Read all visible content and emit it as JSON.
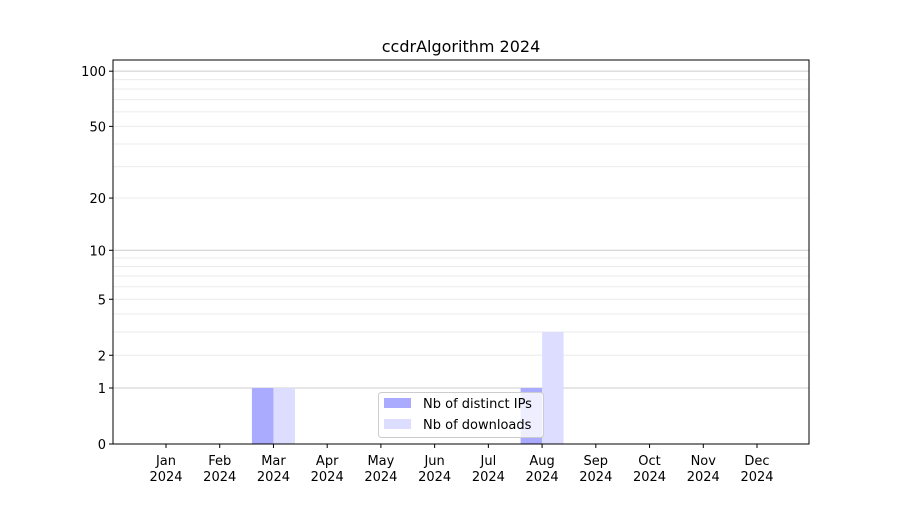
{
  "chart_data": {
    "type": "bar",
    "title": "ccdrAlgorithm 2024",
    "xlabel": "",
    "ylabel": "",
    "y_scale": "log(1+y)",
    "ylim": [
      0,
      115
    ],
    "yticks": [
      0,
      1,
      2,
      5,
      10,
      20,
      50,
      100
    ],
    "ytick_labels": [
      "0",
      "1",
      "2",
      "5",
      "10",
      "20",
      "50",
      "100"
    ],
    "grid": true,
    "categories": [
      "Jan\n2024",
      "Feb\n2024",
      "Mar\n2024",
      "Apr\n2024",
      "May\n2024",
      "Jun\n2024",
      "Jul\n2024",
      "Aug\n2024",
      "Sep\n2024",
      "Oct\n2024",
      "Nov\n2024",
      "Dec\n2024"
    ],
    "category_months": [
      "Jan",
      "Feb",
      "Mar",
      "Apr",
      "May",
      "Jun",
      "Jul",
      "Aug",
      "Sep",
      "Oct",
      "Nov",
      "Dec"
    ],
    "category_year": "2024",
    "series": [
      {
        "name": "Nb of distinct IPs",
        "color": "#aaaaff",
        "values": [
          0,
          0,
          1,
          0,
          0,
          0,
          0,
          1,
          0,
          0,
          0,
          0
        ]
      },
      {
        "name": "Nb of downloads",
        "color": "#ddddff",
        "values": [
          0,
          0,
          1,
          0,
          0,
          0,
          0,
          3,
          0,
          0,
          0,
          0
        ]
      }
    ],
    "legend_position": "lower center"
  }
}
